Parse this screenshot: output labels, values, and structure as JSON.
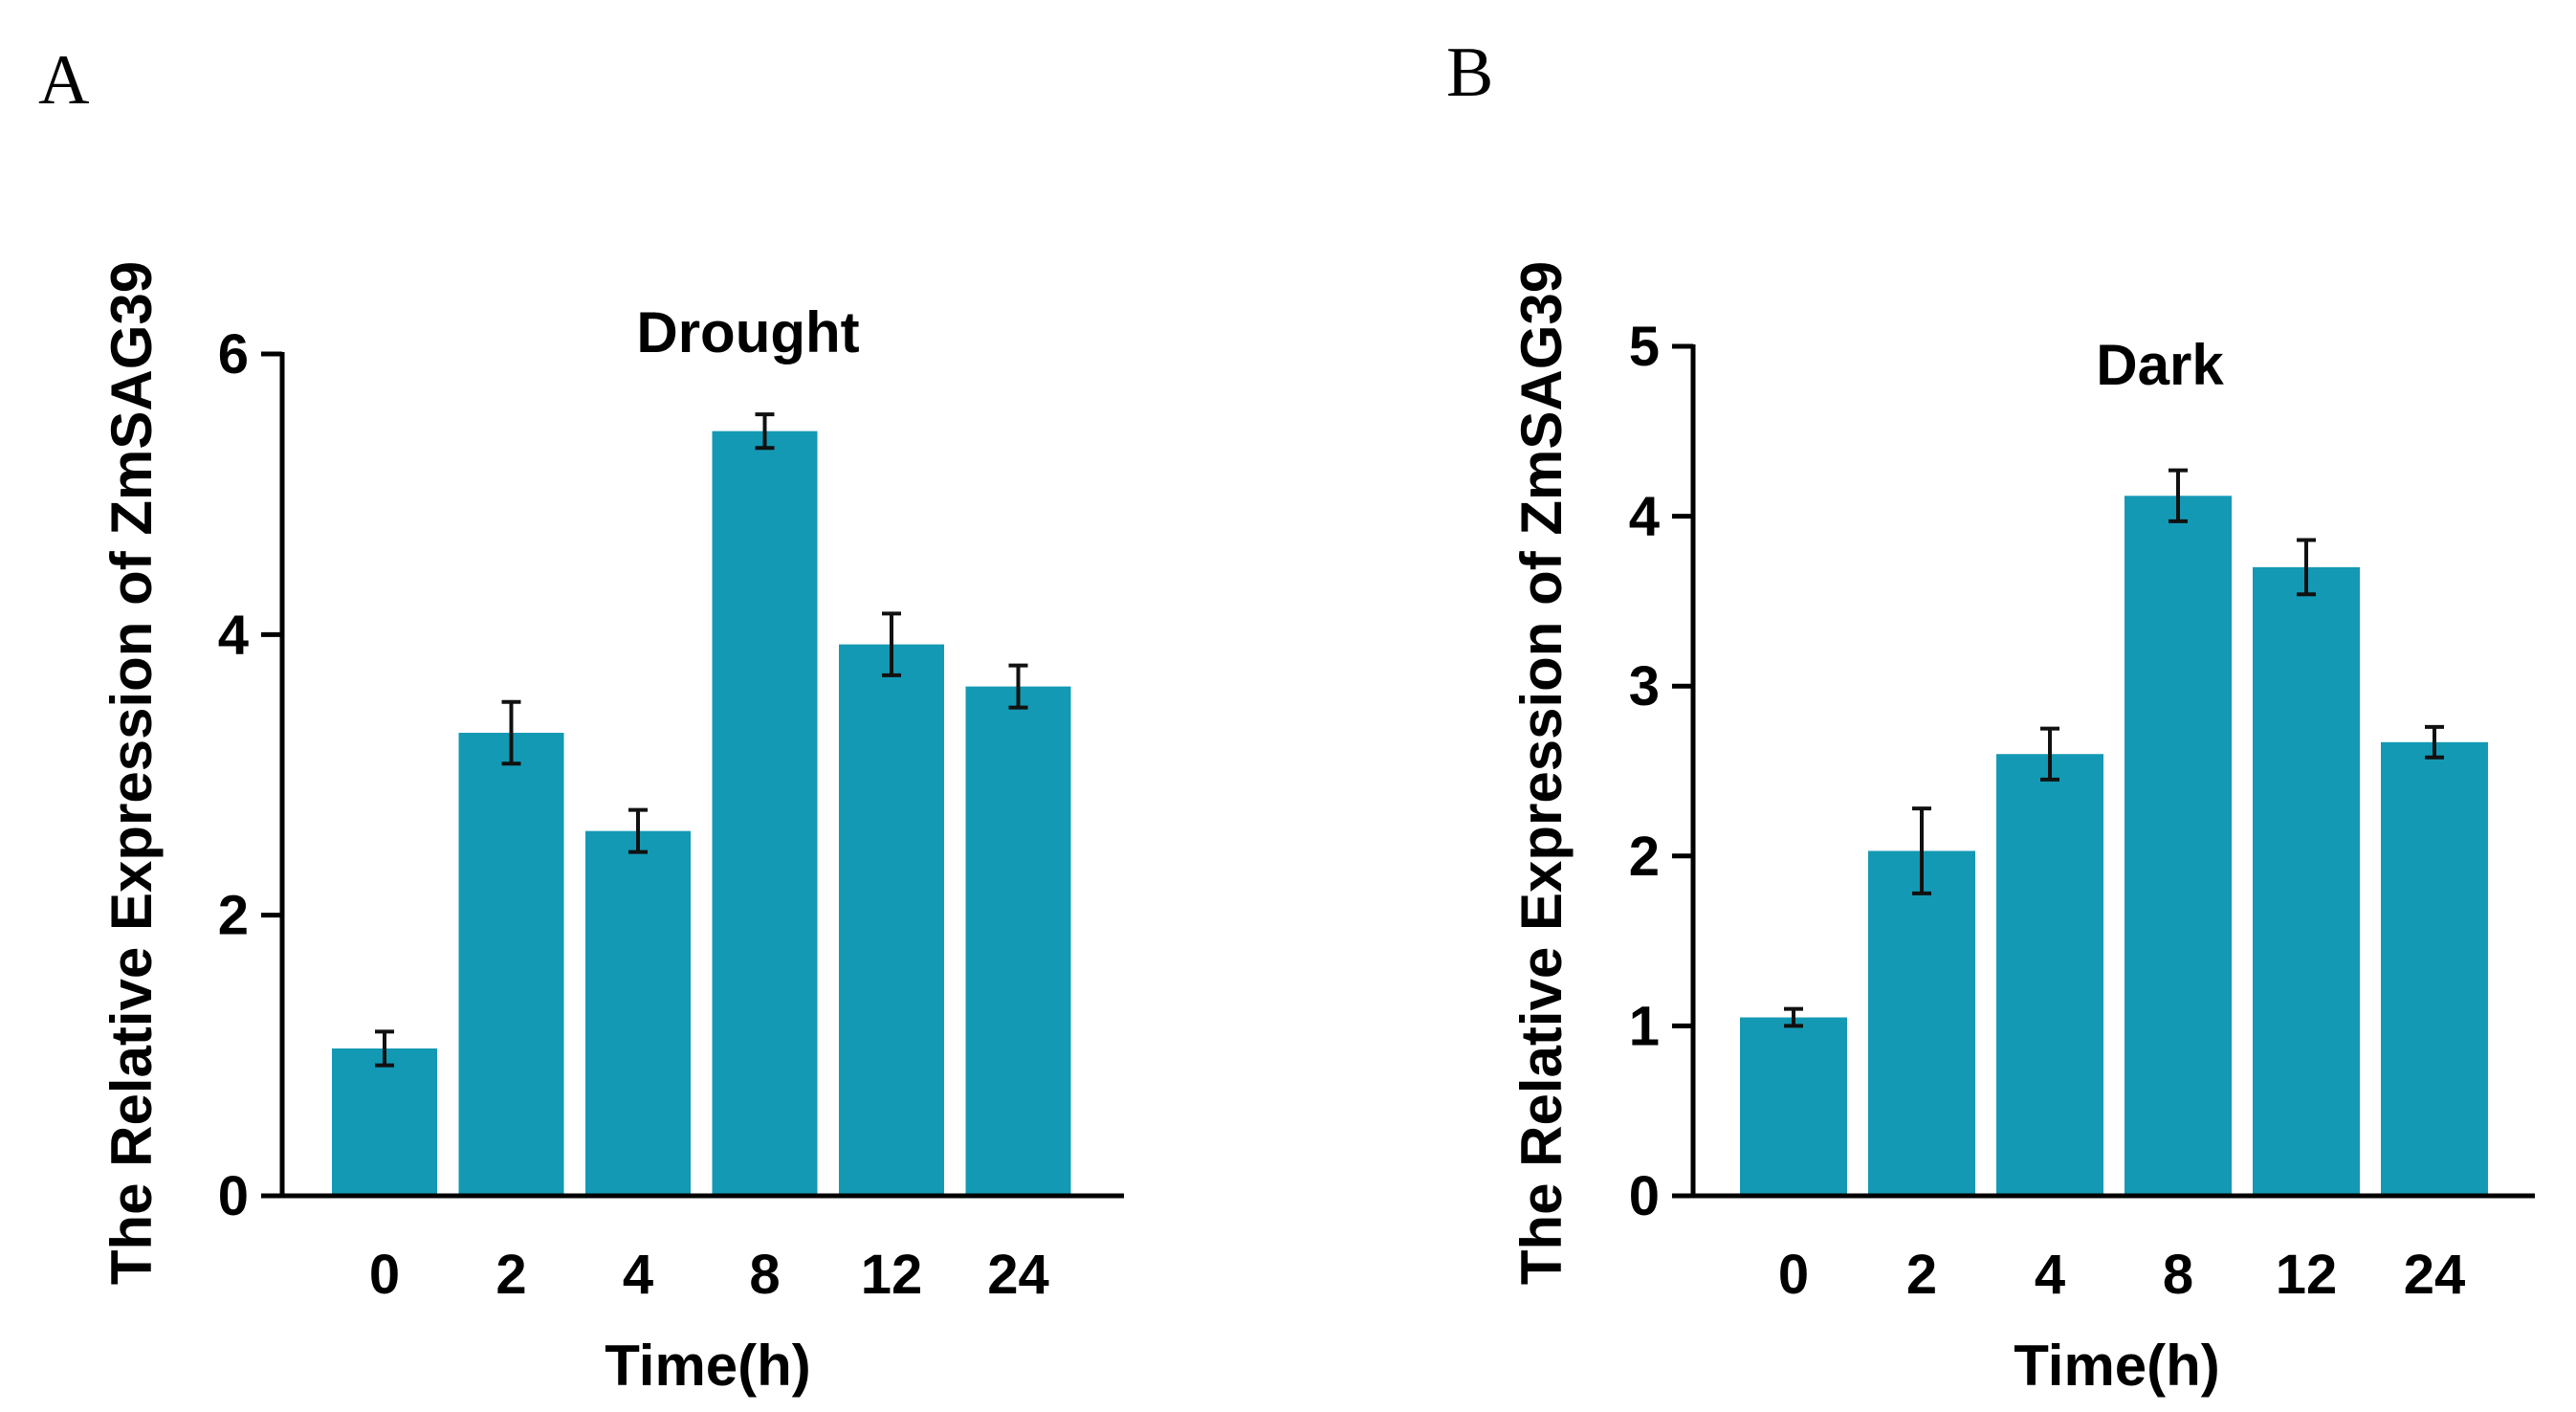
{
  "figure": {
    "background": "#ffffff",
    "bar_color": "#1399b4"
  },
  "chart_data": [
    {
      "panel_label": "A",
      "type": "bar",
      "title": "Drought",
      "xlabel": "Time(h)",
      "ylabel": "The Relative Expression of ZmSAG39",
      "categories": [
        "0",
        "2",
        "4",
        "8",
        "12",
        "24"
      ],
      "values": [
        1.05,
        3.3,
        2.6,
        5.45,
        3.93,
        3.63
      ],
      "errors": [
        0.12,
        0.22,
        0.15,
        0.12,
        0.22,
        0.15
      ],
      "ylim": [
        0,
        6
      ],
      "yticks": [
        0,
        2,
        4,
        6
      ],
      "ytick_labels": [
        "0",
        "2",
        "4",
        "6"
      ],
      "grid": false,
      "legend": "none"
    },
    {
      "panel_label": "B",
      "type": "bar",
      "title": "Dark",
      "xlabel": "Time(h)",
      "ylabel": "The Relative Expression of ZmSAG39",
      "categories": [
        "0",
        "2",
        "4",
        "8",
        "12",
        "24"
      ],
      "values": [
        1.05,
        2.03,
        2.6,
        4.12,
        3.7,
        2.67
      ],
      "errors": [
        0.05,
        0.25,
        0.15,
        0.15,
        0.16,
        0.09
      ],
      "ylim": [
        0,
        5
      ],
      "yticks": [
        0,
        1,
        2,
        3,
        4,
        5
      ],
      "ytick_labels": [
        "0",
        "1",
        "2",
        "3",
        "4",
        "5"
      ],
      "grid": false,
      "legend": "none"
    }
  ]
}
